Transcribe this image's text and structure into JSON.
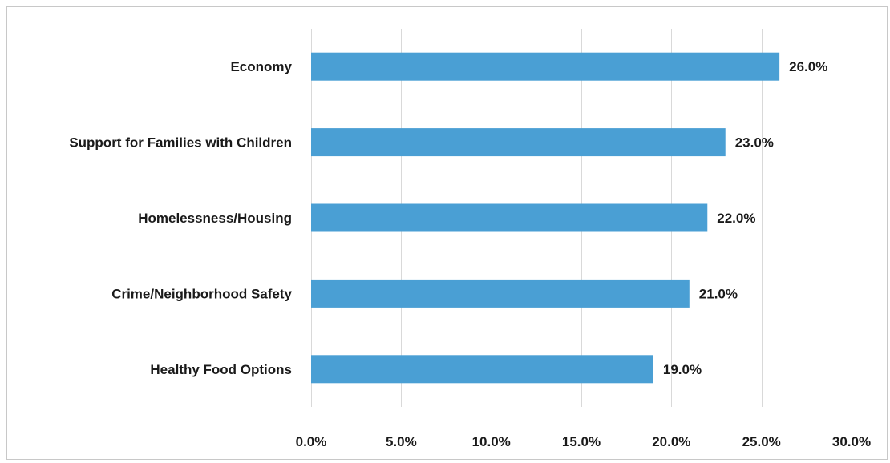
{
  "chart_data": {
    "type": "bar",
    "orientation": "horizontal",
    "categories": [
      "Economy",
      "Support for Families with Children",
      "Homelessness/Housing",
      "Crime/Neighborhood Safety",
      "Healthy Food Options"
    ],
    "values": [
      26.0,
      23.0,
      22.0,
      21.0,
      19.0
    ],
    "value_labels": [
      "26.0%",
      "23.0%",
      "22.0%",
      "21.0%",
      "19.0%"
    ],
    "x_ticks": [
      "0.0%",
      "5.0%",
      "10.0%",
      "15.0%",
      "20.0%",
      "25.0%",
      "30.0%"
    ],
    "xlim": [
      0,
      30
    ],
    "grid": "vertical",
    "bar_color": "#4a9fd4",
    "title": "",
    "xlabel": "",
    "ylabel": ""
  }
}
